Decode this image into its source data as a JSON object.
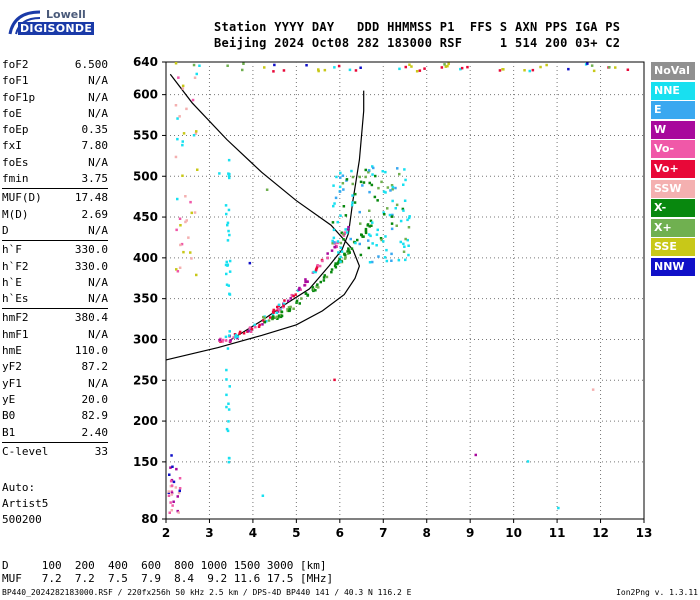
{
  "logo": {
    "top": "Lowell",
    "bottom": "DIGISONDE"
  },
  "header": {
    "line1": "Station YYYY DAY   DDD HHMMSS P1  FFS S AXN PPS IGA PS",
    "line2": "Beijing 2024 Oct08 282 183000 RSF     1 514 200 03+ C2"
  },
  "params_group1": [
    {
      "name": "foF2",
      "value": "6.500"
    },
    {
      "name": "foF1",
      "value": "N/A"
    },
    {
      "name": "foF1p",
      "value": "N/A"
    },
    {
      "name": "foE",
      "value": "N/A"
    },
    {
      "name": "foEp",
      "value": "0.35"
    },
    {
      "name": "fxI",
      "value": "7.80"
    },
    {
      "name": "foEs",
      "value": "N/A"
    },
    {
      "name": "fmin",
      "value": "3.75"
    }
  ],
  "params_group2": [
    {
      "name": "MUF(D)",
      "value": "17.48"
    },
    {
      "name": "M(D)",
      "value": "2.69"
    },
    {
      "name": "D",
      "value": "N/A"
    }
  ],
  "params_group3": [
    {
      "name": "h`F",
      "value": "330.0"
    },
    {
      "name": "h`F2",
      "value": "330.0"
    },
    {
      "name": "h`E",
      "value": "N/A"
    },
    {
      "name": "h`Es",
      "value": "N/A"
    }
  ],
  "params_group4": [
    {
      "name": "hmF2",
      "value": "380.4"
    },
    {
      "name": "hmF1",
      "value": "N/A"
    },
    {
      "name": "hmE",
      "value": "110.0"
    },
    {
      "name": "yF2",
      "value": "87.2"
    },
    {
      "name": "yF1",
      "value": "N/A"
    },
    {
      "name": "yE",
      "value": "20.0"
    },
    {
      "name": "B0",
      "value": "82.9"
    },
    {
      "name": "B1",
      "value": "2.40"
    }
  ],
  "params_group5": [
    {
      "name": "C-level",
      "value": "33"
    }
  ],
  "auto": {
    "l1": "Auto:",
    "l2": "Artist5",
    "l3": "500200"
  },
  "legend": [
    {
      "label": "NoVal",
      "color": "#909090"
    },
    {
      "label": "NNE",
      "color": "#18e0f0"
    },
    {
      "label": "E",
      "color": "#3aa8f0"
    },
    {
      "label": "W",
      "color": "#a8089c"
    },
    {
      "label": "Vo-",
      "color": "#f058a8"
    },
    {
      "label": "Vo+",
      "color": "#e80838"
    },
    {
      "label": "SSW",
      "color": "#f4b0b0"
    },
    {
      "label": "X-",
      "color": "#08880e"
    },
    {
      "label": "X+",
      "color": "#70b050"
    },
    {
      "label": "SSE",
      "color": "#c8c818"
    },
    {
      "label": "NNW",
      "color": "#1010c8"
    }
  ],
  "chart_data": {
    "type": "scatter",
    "title": "",
    "xlabel": "",
    "ylabel": "",
    "xlim": [
      2,
      13
    ],
    "ylim": [
      80,
      640
    ],
    "xticks": [
      2,
      3,
      4,
      5,
      6,
      7,
      8,
      9,
      10,
      11,
      12,
      13
    ],
    "yticks": [
      80,
      150,
      200,
      250,
      300,
      350,
      400,
      450,
      500,
      550,
      600,
      640
    ],
    "grid": true
  },
  "dmuf": {
    "d_row": "D     100  200  400  600  800 1000 1500 3000 [km]",
    "muf_row": "MUF   7.2  7.2  7.5  7.9  8.4  9.2 11.6 17.5 [MHz]"
  },
  "footer": {
    "left": "BP440_2024282183000.RSF / 220fx256h 50 kHz 2.5 km / DPS-4D BP440 141 / 40.3 N 116.2 E",
    "right": "Ion2Png v. 1.3.11"
  }
}
